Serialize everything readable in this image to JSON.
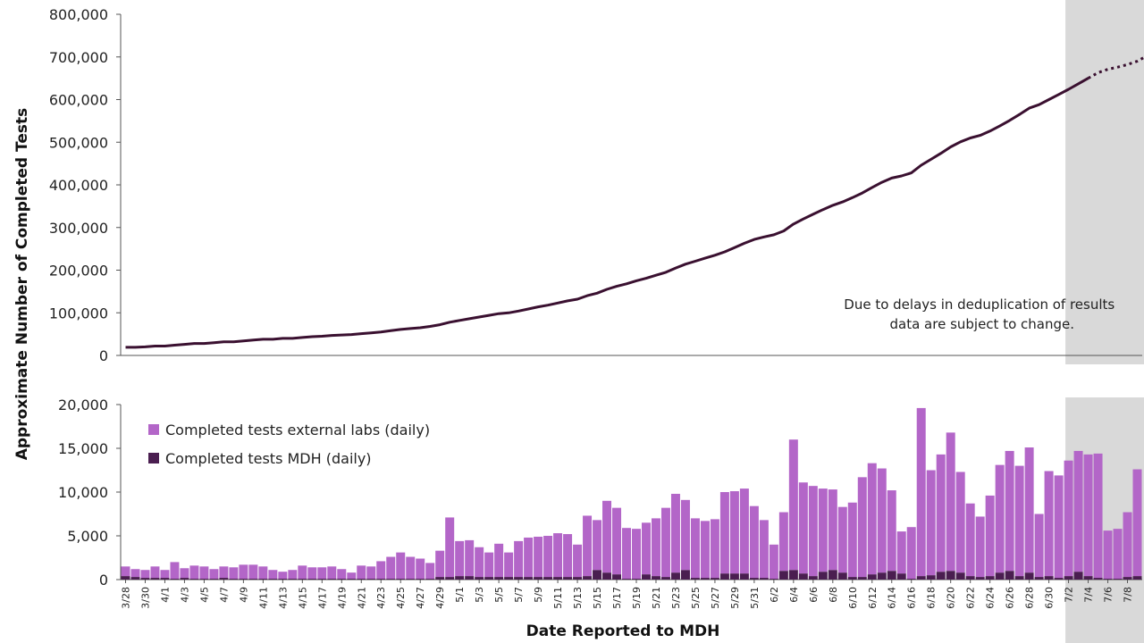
{
  "chart_data": [
    {
      "type": "line",
      "ylim": [
        0,
        800000
      ],
      "y_ticks": [
        "0",
        "100,000",
        "200,000",
        "300,000",
        "400,000",
        "500,000",
        "600,000",
        "700,000",
        "800,000"
      ],
      "series": [
        {
          "values": [
            19000,
            19000,
            20000,
            22000,
            22000,
            24000,
            26000,
            28000,
            28000,
            30000,
            32000,
            32000,
            34000,
            36000,
            38000,
            38000,
            40000,
            40000,
            42000,
            44000,
            45000,
            47000,
            48000,
            49000,
            51000,
            53000,
            55000,
            58000,
            61000,
            63000,
            65000,
            68000,
            72000,
            78000,
            82000,
            86000,
            90000,
            94000,
            98000,
            100000,
            104000,
            109000,
            114000,
            118000,
            123000,
            128000,
            132000,
            140000,
            146000,
            155000,
            162000,
            168000,
            175000,
            181000,
            188000,
            195000,
            205000,
            214000,
            221000,
            228000,
            235000,
            243000,
            253000,
            263000,
            272000,
            278000,
            283000,
            292000,
            308000,
            320000,
            331000,
            342000,
            352000,
            360000,
            370000,
            381000,
            394000,
            406000,
            416000,
            421000,
            428000,
            446000,
            460000,
            474000,
            489000,
            501000,
            510000,
            516000,
            526000,
            538000,
            551000,
            565000,
            580000,
            588000,
            600000,
            612000,
            624000,
            637000,
            650000,
            663000,
            671000,
            676000,
            682000,
            690000,
            703000
          ],
          "provisional_from_index": 98
        }
      ],
      "annotation": "Due to delays in deduplication of results data are subject to change."
    },
    {
      "type": "bar",
      "stacked": true,
      "ylim": [
        0,
        20000
      ],
      "y_ticks": [
        "0",
        "5,000",
        "10,000",
        "15,000",
        "20,000"
      ],
      "x_tick_labels": [
        "3/28",
        "3/30",
        "4/1",
        "4/3",
        "4/5",
        "4/7",
        "4/9",
        "4/11",
        "4/13",
        "4/15",
        "4/17",
        "4/19",
        "4/21",
        "4/23",
        "4/25",
        "4/27",
        "4/29",
        "5/1",
        "5/3",
        "5/5",
        "5/7",
        "5/9",
        "5/11",
        "5/13",
        "5/15",
        "5/17",
        "5/19",
        "5/21",
        "5/23",
        "5/25",
        "5/27",
        "5/29",
        "5/31",
        "6/2",
        "6/4",
        "6/6",
        "6/8",
        "6/10",
        "6/12",
        "6/14",
        "6/16",
        "6/18",
        "6/20",
        "6/22",
        "6/24",
        "6/26",
        "6/28",
        "6/30",
        "7/2",
        "7/4",
        "7/6",
        "7/8"
      ],
      "xlabel": "Date Reported to MDH",
      "ylabel": "Approximate Number of Completed Tests",
      "legend_position": "top-left",
      "provisional_from_index": 96,
      "series": [
        {
          "name": "Completed tests external labs (daily)",
          "color": "#b366c8",
          "values": [
            1100,
            900,
            900,
            1300,
            900,
            1900,
            1100,
            1500,
            1400,
            1100,
            1300,
            1300,
            1600,
            1600,
            1400,
            1000,
            800,
            1000,
            1500,
            1300,
            1300,
            1400,
            1100,
            700,
            1500,
            1400,
            2000,
            2500,
            3000,
            2500,
            2300,
            1800,
            3000,
            6800,
            4000,
            4100,
            3400,
            2800,
            3800,
            2800,
            4100,
            4500,
            4600,
            4700,
            5000,
            4900,
            3700,
            6900,
            5700,
            8200,
            7600,
            5800,
            5700,
            5900,
            6600,
            7900,
            9000,
            8000,
            6800,
            6500,
            6700,
            9300,
            9400,
            9700,
            8200,
            6600,
            3900,
            6700,
            14900,
            10400,
            10300,
            9500,
            9200,
            7500,
            8500,
            11400,
            12700,
            11900,
            9200,
            4800,
            5900,
            19200,
            12000,
            13400,
            15800,
            11500,
            8300,
            6900,
            9200,
            12300,
            13700,
            12600,
            14300,
            7200,
            12000,
            11700,
            13200,
            13800,
            13900,
            14200,
            5500,
            5700,
            7400,
            12200
          ],
          "stack_on": "mdh"
        },
        {
          "name": "Completed tests MDH (daily)",
          "color": "#4a1e50",
          "values": [
            400,
            300,
            200,
            200,
            200,
            100,
            200,
            100,
            100,
            100,
            200,
            100,
            100,
            100,
            100,
            100,
            100,
            100,
            100,
            100,
            100,
            100,
            100,
            100,
            100,
            100,
            100,
            100,
            100,
            100,
            100,
            100,
            300,
            300,
            400,
            400,
            300,
            300,
            300,
            300,
            300,
            300,
            300,
            300,
            300,
            300,
            300,
            400,
            1100,
            800,
            600,
            100,
            100,
            600,
            400,
            300,
            800,
            1100,
            200,
            200,
            200,
            700,
            700,
            700,
            200,
            200,
            100,
            1000,
            1100,
            700,
            400,
            900,
            1100,
            800,
            300,
            300,
            600,
            800,
            1000,
            700,
            100,
            400,
            500,
            900,
            1000,
            800,
            400,
            300,
            400,
            800,
            1000,
            400,
            800,
            300,
            400,
            200,
            400,
            900,
            400,
            200,
            100,
            100,
            300,
            400
          ],
          "id": "mdh"
        }
      ]
    }
  ]
}
